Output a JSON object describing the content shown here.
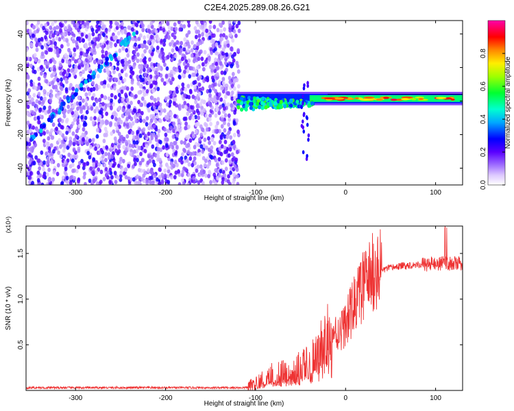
{
  "title": "C2E4.2025.289.08.26.G21",
  "chart_data": [
    {
      "type": "heatmap",
      "title": "C2E4.2025.289.08.26.G21",
      "xlabel": "Height of straight line (km)",
      "ylabel": "Frequency (Hz)",
      "xlim": [
        -355,
        130
      ],
      "ylim": [
        -50,
        48
      ],
      "xticks": [
        -300,
        -200,
        -100,
        0,
        100
      ],
      "yticks": [
        -40,
        -20,
        0,
        20,
        40
      ],
      "xtick_labels": [
        "-300",
        "-200",
        "-100",
        "0",
        "100"
      ],
      "ytick_labels": [
        "-40",
        "-20",
        "0",
        "20",
        "40"
      ],
      "colorbar": {
        "label": "Normalized spectral amplitude",
        "range": [
          0,
          1
        ],
        "ticks": [
          0.0,
          0.2,
          0.4,
          0.6,
          0.8
        ],
        "tick_labels": [
          "0.0",
          "0.2",
          "0.4",
          "0.6",
          "0.8"
        ]
      },
      "features": {
        "noise_region_x": [
          -355,
          -118
        ],
        "noise_region_y": [
          -50,
          48
        ],
        "diagonal_trace": {
          "x": [
            -355,
            -235
          ],
          "y": [
            -25,
            40
          ]
        },
        "carrier_center_freq": 1.5,
        "carrier_onset_x": -120,
        "spike_x": -45,
        "spike_freq_range": [
          -35,
          12
        ]
      }
    },
    {
      "type": "line",
      "xlabel": "Height of straight line (km)",
      "ylabel": "SNR (10 * v/v)",
      "y_exponent_label": "(x10⁴)",
      "xlim": [
        -355,
        130
      ],
      "ylim": [
        0,
        1.8
      ],
      "xticks": [
        -300,
        -200,
        -100,
        0,
        100
      ],
      "yticks": [
        0.5,
        1.0,
        1.5
      ],
      "xtick_labels": [
        "-300",
        "-200",
        "-100",
        "0",
        "100"
      ],
      "ytick_labels": [
        "0.5",
        "1.0",
        "1.5"
      ],
      "series": [
        {
          "name": "SNR",
          "color": "#ee3333",
          "x": [
            -355,
            -110,
            -100,
            -90,
            -80,
            -70,
            -60,
            -50,
            -40,
            -30,
            -20,
            -10,
            0,
            10,
            20,
            30,
            40,
            50,
            60,
            70,
            80,
            90,
            100,
            110,
            120,
            130
          ],
          "y": [
            0.03,
            0.03,
            0.08,
            0.12,
            0.2,
            0.2,
            0.22,
            0.28,
            0.33,
            0.42,
            0.7,
            0.62,
            0.72,
            0.95,
            1.15,
            1.28,
            1.32,
            1.34,
            1.36,
            1.37,
            1.38,
            1.38,
            1.39,
            1.39,
            1.39,
            1.39
          ]
        }
      ]
    }
  ]
}
